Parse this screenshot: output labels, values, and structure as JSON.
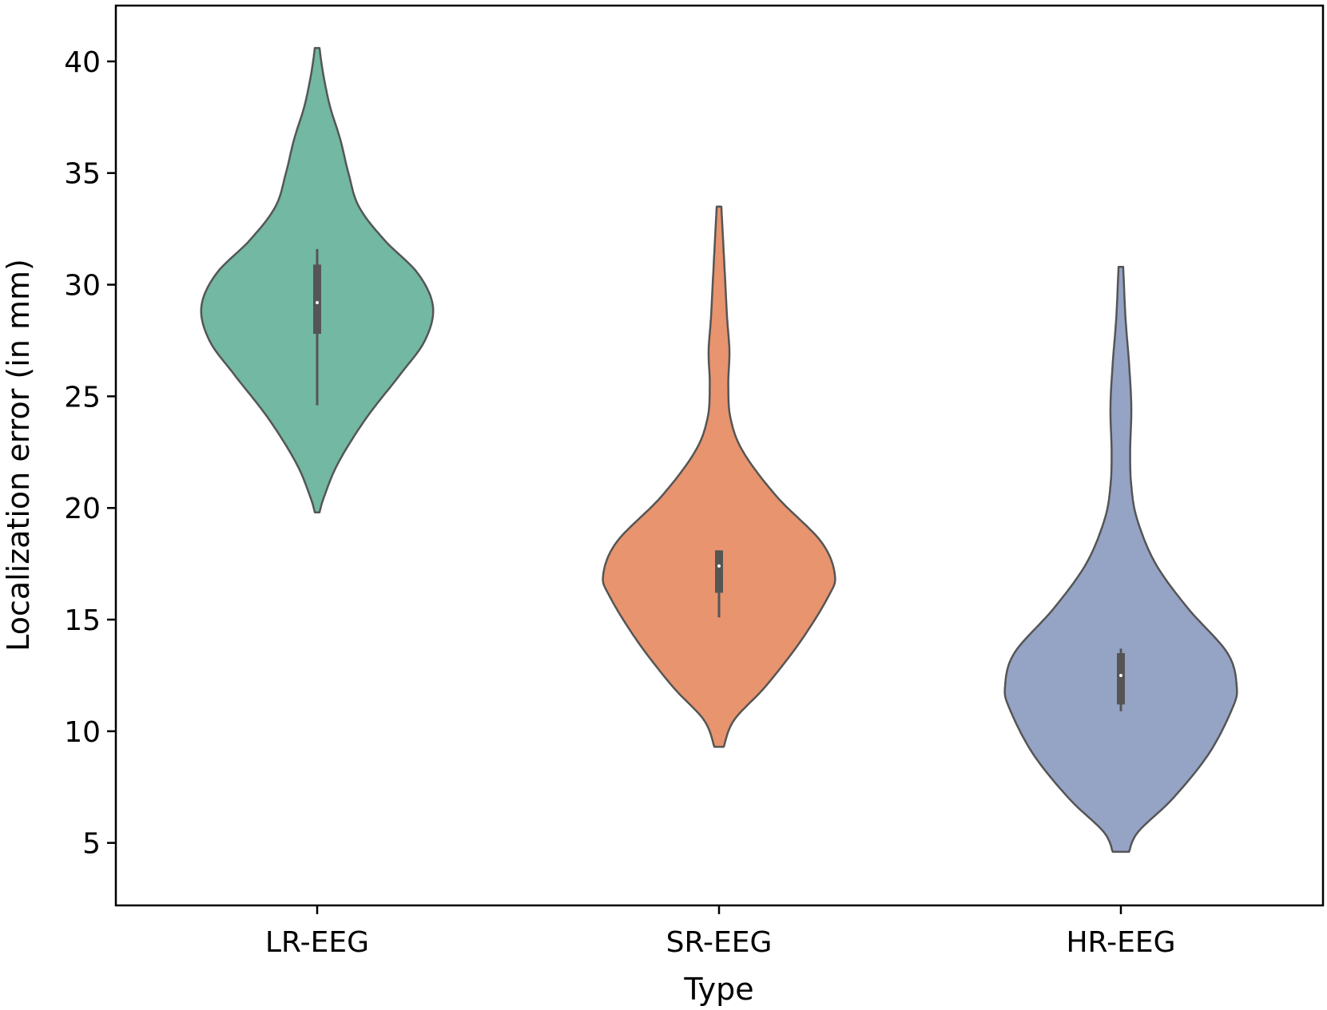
{
  "chart_data": {
    "type": "violin",
    "xlabel": "Type",
    "ylabel": "Localization error (in mm)",
    "ylim": [
      2.2,
      42.5
    ],
    "yticks": [
      5,
      10,
      15,
      20,
      25,
      30,
      35,
      40
    ],
    "categories": [
      "LR-EEG",
      "SR-EEG",
      "HR-EEG"
    ],
    "grid": false,
    "legend": "none",
    "series": [
      {
        "name": "LR-EEG",
        "color": "#72b8a2",
        "min": 19.8,
        "max": 40.6,
        "q1": 27.8,
        "median": 29.2,
        "q3": 30.9,
        "whisker_low": 24.6,
        "whisker_high": 31.6,
        "density_profile": [
          [
            19.8,
            0.02
          ],
          [
            20.5,
            0.06
          ],
          [
            22.0,
            0.18
          ],
          [
            24.0,
            0.42
          ],
          [
            26.0,
            0.72
          ],
          [
            27.5,
            0.93
          ],
          [
            29.0,
            1.0
          ],
          [
            30.5,
            0.87
          ],
          [
            32.0,
            0.58
          ],
          [
            33.5,
            0.36
          ],
          [
            35.0,
            0.27
          ],
          [
            36.5,
            0.2
          ],
          [
            38.0,
            0.11
          ],
          [
            39.5,
            0.05
          ],
          [
            40.6,
            0.02
          ]
        ]
      },
      {
        "name": "SR-EEG",
        "color": "#e8946f",
        "min": 9.3,
        "max": 33.5,
        "q1": 16.2,
        "median": 17.4,
        "q3": 18.1,
        "whisker_low": 15.1,
        "whisker_high": 18.1,
        "density_profile": [
          [
            9.3,
            0.04
          ],
          [
            10.5,
            0.13
          ],
          [
            12.0,
            0.4
          ],
          [
            14.0,
            0.7
          ],
          [
            16.0,
            0.94
          ],
          [
            17.0,
            1.0
          ],
          [
            18.5,
            0.88
          ],
          [
            20.5,
            0.5
          ],
          [
            22.5,
            0.21
          ],
          [
            24.0,
            0.1
          ],
          [
            25.5,
            0.08
          ],
          [
            27.0,
            0.09
          ],
          [
            28.5,
            0.07
          ],
          [
            30.5,
            0.05
          ],
          [
            32.5,
            0.03
          ],
          [
            33.5,
            0.02
          ]
        ]
      },
      {
        "name": "HR-EEG",
        "color": "#95a3c5",
        "min": 4.6,
        "max": 30.8,
        "q1": 11.2,
        "median": 12.5,
        "q3": 13.5,
        "whisker_low": 10.9,
        "whisker_high": 13.7,
        "density_profile": [
          [
            4.6,
            0.07
          ],
          [
            5.5,
            0.15
          ],
          [
            7.0,
            0.45
          ],
          [
            9.0,
            0.76
          ],
          [
            11.0,
            0.96
          ],
          [
            12.0,
            1.0
          ],
          [
            13.5,
            0.92
          ],
          [
            15.5,
            0.58
          ],
          [
            17.5,
            0.3
          ],
          [
            19.5,
            0.14
          ],
          [
            21.0,
            0.09
          ],
          [
            22.5,
            0.08
          ],
          [
            24.5,
            0.09
          ],
          [
            26.5,
            0.07
          ],
          [
            28.5,
            0.04
          ],
          [
            30.8,
            0.02
          ]
        ]
      }
    ]
  }
}
